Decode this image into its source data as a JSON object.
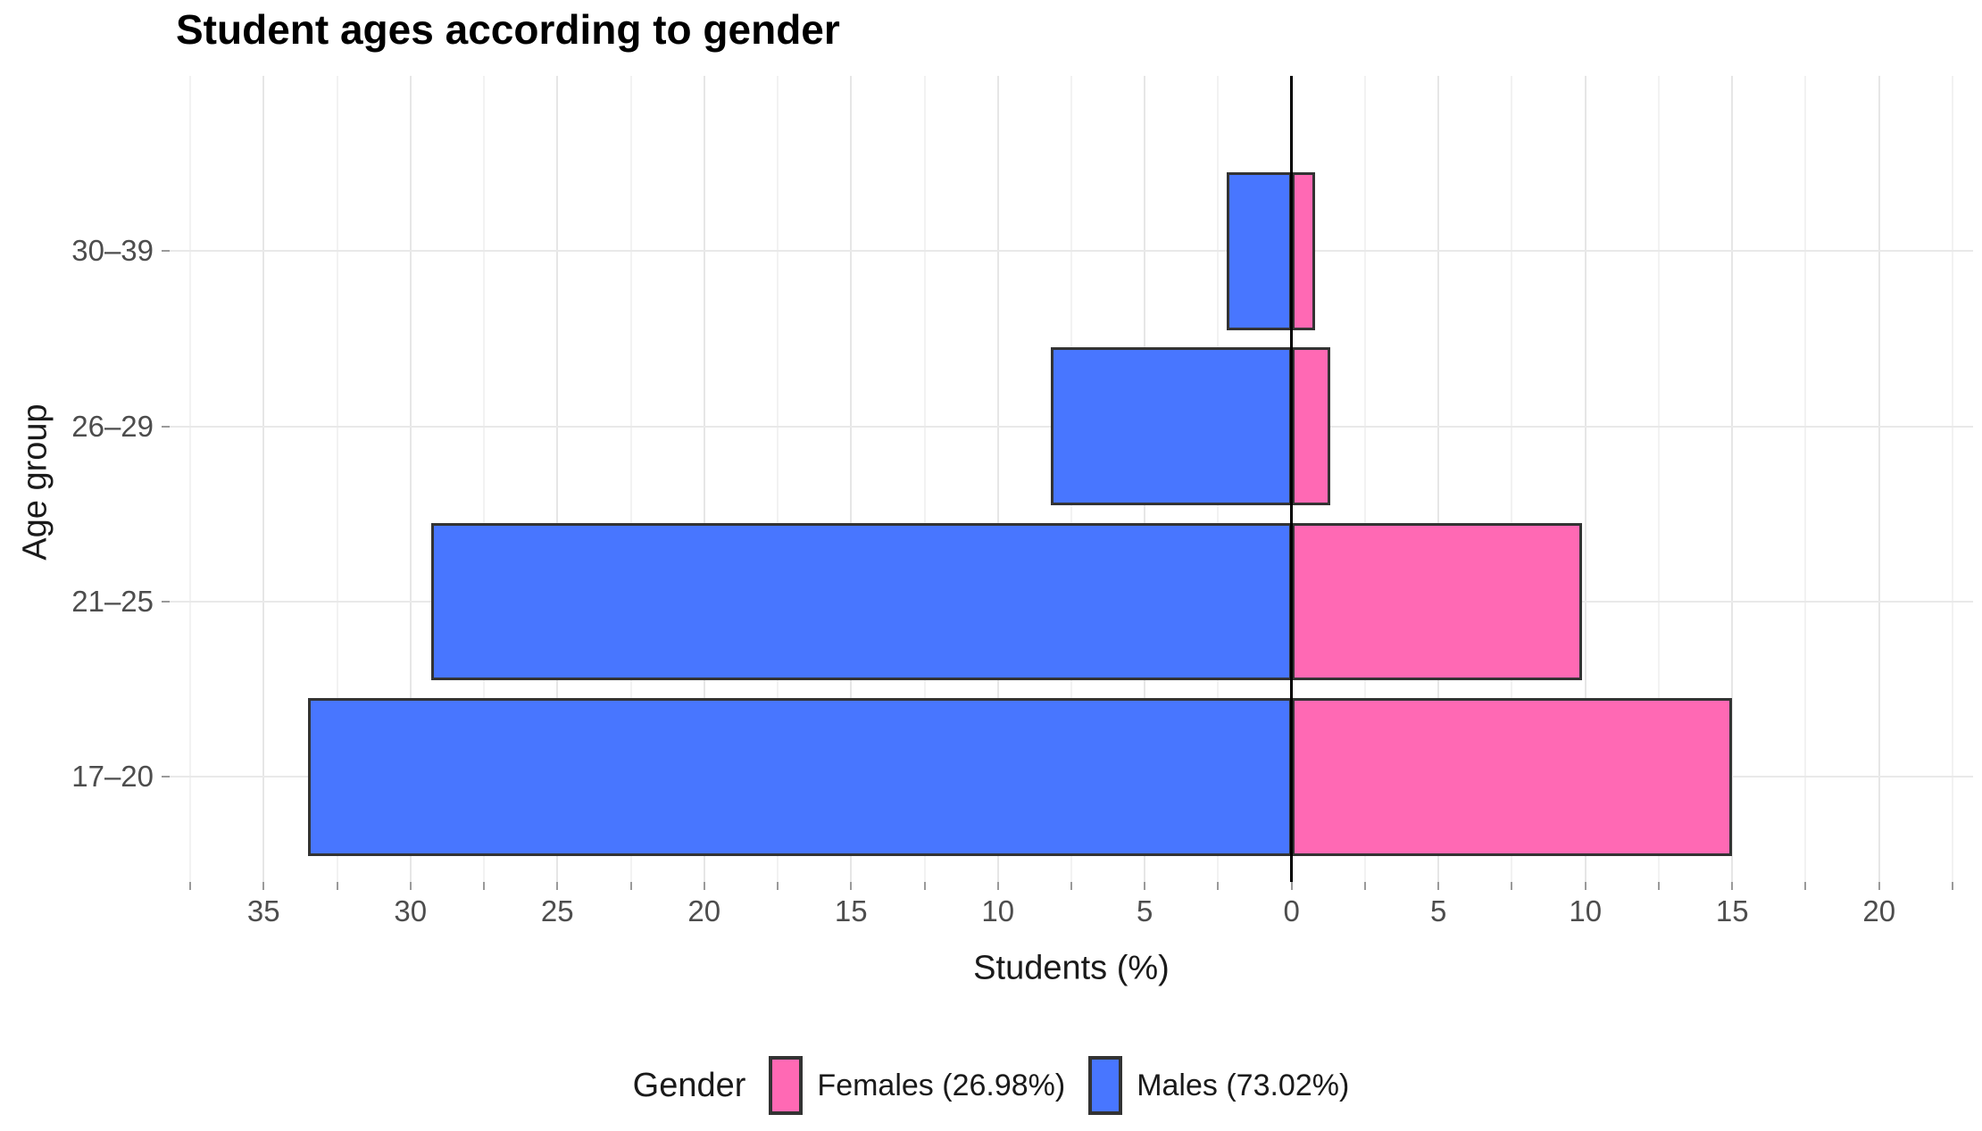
{
  "title": "Student ages according to gender",
  "axes": {
    "x_title": "Students (%)",
    "y_title": "Age group"
  },
  "legend": {
    "title": "Gender",
    "items": [
      {
        "label": "Females (26.98%)",
        "color": "#FF69B4"
      },
      {
        "label": "Males (73.02%)",
        "color": "#4876FF"
      }
    ]
  },
  "colors": {
    "male_fill": "#4876FF",
    "female_fill": "#FF69B4",
    "bar_border": "#333333",
    "zero_line": "#000000",
    "grid_major": "#e6e6e6",
    "grid_minor": "#f2f2f2",
    "tick_text": "#4d4d4d"
  },
  "chart_data": {
    "type": "bar",
    "subtype": "population-pyramid",
    "orientation": "horizontal",
    "title": "Student ages according to gender",
    "xlabel": "Students (%)",
    "ylabel": "Age group",
    "categories": [
      "17–20",
      "21–25",
      "26–29",
      "30–39"
    ],
    "series": [
      {
        "name": "Females (26.98%)",
        "side": "right",
        "color": "#FF69B4",
        "values": [
          15.0,
          9.9,
          1.3,
          0.8
        ]
      },
      {
        "name": "Males (73.02%)",
        "side": "left",
        "color": "#4876FF",
        "values": [
          33.5,
          29.3,
          8.2,
          2.2
        ]
      }
    ],
    "xlim": [
      -38.2,
      23.2
    ],
    "x_major_ticks": [
      -35,
      -30,
      -25,
      -20,
      -15,
      -10,
      -5,
      0,
      5,
      10,
      15,
      20
    ],
    "x_tick_labels": [
      "35",
      "30",
      "25",
      "20",
      "15",
      "10",
      "5",
      "0",
      "5",
      "10",
      "15",
      "20"
    ],
    "x_minor_ticks": [
      -37.5,
      -32.5,
      -27.5,
      -22.5,
      -17.5,
      -12.5,
      -7.5,
      -2.5,
      2.5,
      7.5,
      12.5,
      17.5,
      22.5
    ],
    "grid": true,
    "legend_position": "bottom"
  }
}
